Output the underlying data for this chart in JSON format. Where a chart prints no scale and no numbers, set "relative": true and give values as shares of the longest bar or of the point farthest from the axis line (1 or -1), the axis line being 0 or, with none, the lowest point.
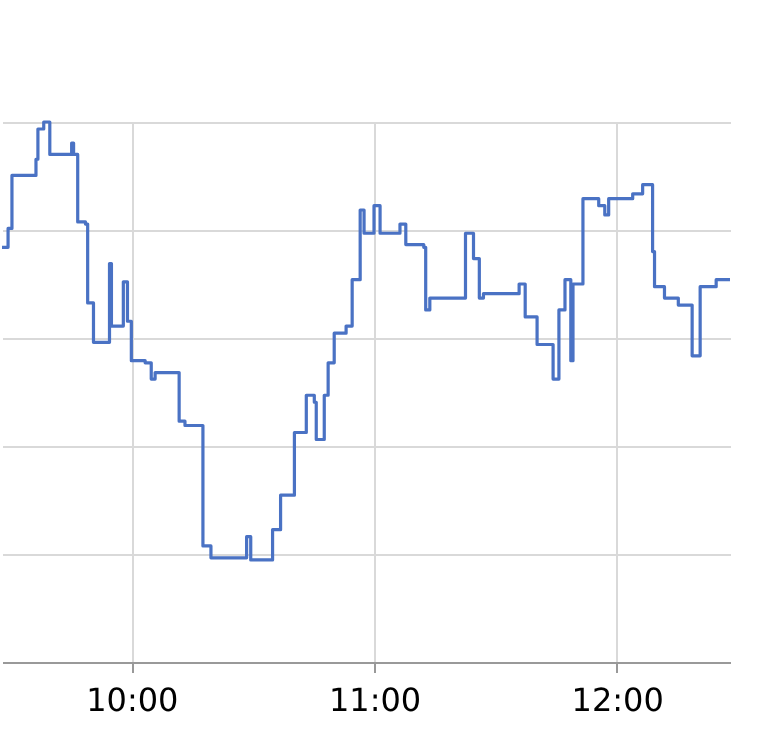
{
  "chart_data": {
    "type": "step",
    "relative": true,
    "color": "#4a72c4",
    "grid": true,
    "xlim": [
      9.467,
      12.467
    ],
    "xticks": [
      {
        "value": 10,
        "label": "10:00"
      },
      {
        "value": 11,
        "label": "11:00"
      },
      {
        "value": 12,
        "label": "12:00"
      }
    ],
    "x": [
      9.467,
      9.492,
      9.508,
      9.598,
      9.607,
      9.615,
      9.639,
      9.664,
      9.738,
      9.754,
      9.762,
      9.779,
      9.811,
      9.82,
      9.844,
      9.902,
      9.91,
      9.918,
      9.967,
      9.984,
      10.0,
      10.057,
      10.082,
      10.098,
      10.189,
      10.197,
      10.221,
      10.287,
      10.295,
      10.328,
      10.467,
      10.475,
      10.492,
      10.557,
      10.582,
      10.615,
      10.672,
      10.721,
      10.754,
      10.762,
      10.795,
      10.811,
      10.836,
      10.885,
      10.91,
      10.943,
      10.959,
      11.0,
      11.025,
      11.107,
      11.131,
      11.205,
      11.213,
      11.23,
      11.377,
      11.41,
      11.434,
      11.451,
      11.598,
      11.623,
      11.672,
      11.738,
      11.762,
      11.787,
      11.811,
      11.82,
      11.861,
      11.926,
      11.951,
      11.967,
      12.066,
      12.107,
      12.148,
      12.156,
      12.197,
      12.254,
      12.311,
      12.344,
      12.41,
      12.467
    ],
    "values": [
      0.768,
      0.803,
      0.901,
      0.901,
      0.931,
      0.987,
      1,
      0.94,
      0.94,
      0.961,
      0.94,
      0.815,
      0.811,
      0.665,
      0.592,
      0.592,
      0.738,
      0.622,
      0.704,
      0.631,
      0.558,
      0.554,
      0.524,
      0.536,
      0.536,
      0.446,
      0.438,
      0.438,
      0.215,
      0.193,
      0.193,
      0.232,
      0.189,
      0.189,
      0.245,
      0.309,
      0.425,
      0.494,
      0.481,
      0.412,
      0.494,
      0.554,
      0.609,
      0.622,
      0.708,
      0.837,
      0.794,
      0.845,
      0.794,
      0.811,
      0.773,
      0.768,
      0.652,
      0.674,
      0.794,
      0.747,
      0.674,
      0.682,
      0.7,
      0.639,
      0.588,
      0.524,
      0.652,
      0.708,
      0.558,
      0.7,
      0.858,
      0.845,
      0.828,
      0.858,
      0.867,
      0.884,
      0.76,
      0.695,
      0.674,
      0.661,
      0.567,
      0.695,
      0.708,
      0.708
    ]
  }
}
